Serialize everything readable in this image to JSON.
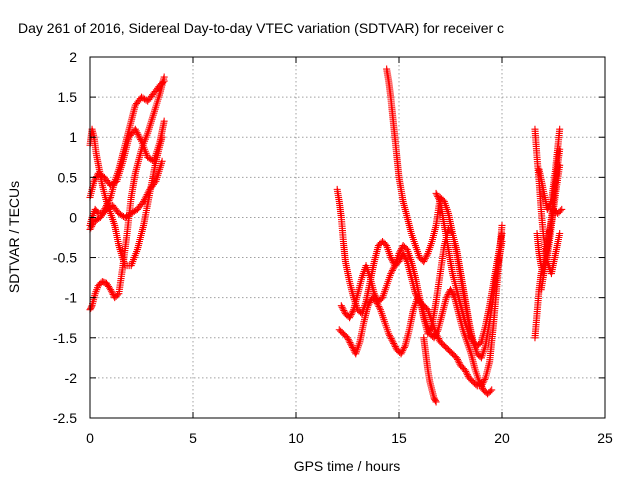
{
  "chart_data": {
    "type": "scatter",
    "title": "Day 261 of 2016, Sidereal Day-to-day VTEC variation (SDTVAR) for receiver c",
    "xlabel": "GPS time / hours",
    "ylabel": "SDTVAR / TECUs",
    "xlim": [
      0,
      25
    ],
    "ylim": [
      -2.5,
      2
    ],
    "x_ticks": [
      0,
      5,
      10,
      15,
      20,
      25
    ],
    "x_tick_labels": [
      "0",
      "5",
      "10",
      "15",
      "20",
      "25"
    ],
    "y_ticks": [
      -2.5,
      -2,
      -1.5,
      -1,
      -0.5,
      0,
      0.5,
      1,
      1.5,
      2
    ],
    "y_tick_labels": [
      "-2.5",
      "-2",
      "-1.5",
      "-1",
      "-0.5",
      "0",
      "0.5",
      "1",
      "1.5",
      "2"
    ],
    "grid": true,
    "marker": "+",
    "color": "#ff0000",
    "series": [
      {
        "traces": [
          {
            "x": [
              0.0,
              0.1,
              0.25,
              0.4,
              0.6,
              0.8,
              1.0,
              1.2,
              1.4,
              1.6,
              1.8,
              2.0,
              2.2,
              2.5,
              2.8,
              3.1,
              3.4,
              3.6
            ],
            "y": [
              -1.15,
              -1.1,
              -0.95,
              -0.85,
              -0.8,
              -0.82,
              -0.9,
              -1.0,
              -0.95,
              -0.6,
              -0.2,
              0.25,
              0.55,
              0.85,
              1.05,
              1.3,
              1.55,
              1.75
            ]
          },
          {
            "x": [
              0.0,
              0.1,
              0.25,
              0.4,
              0.6,
              0.8,
              1.0,
              1.2,
              1.4,
              1.6,
              1.8,
              2.0,
              2.2,
              2.5,
              2.8,
              3.1,
              3.4,
              3.6
            ],
            "y": [
              -0.1,
              0.0,
              0.1,
              0.05,
              0.05,
              0.15,
              0.25,
              0.45,
              0.6,
              0.8,
              1.0,
              1.2,
              1.4,
              1.5,
              1.45,
              1.55,
              1.65,
              1.7
            ]
          },
          {
            "x": [
              0.0,
              0.1,
              0.2,
              0.3,
              0.45,
              0.6,
              0.8,
              1.0,
              1.2,
              1.4,
              1.7,
              2.0,
              2.3,
              2.6,
              2.9,
              3.2,
              3.5
            ],
            "y": [
              0.9,
              1.1,
              1.0,
              0.8,
              0.6,
              0.4,
              0.2,
              0.05,
              -0.1,
              -0.35,
              -0.6,
              -0.6,
              -0.4,
              -0.1,
              0.3,
              0.7,
              1.0
            ]
          },
          {
            "x": [
              0.0,
              0.2,
              0.4,
              0.7,
              1.0,
              1.3,
              1.6,
              1.9,
              2.2,
              2.5,
              2.8,
              3.1,
              3.4,
              3.6
            ],
            "y": [
              0.25,
              0.45,
              0.55,
              0.5,
              0.4,
              0.45,
              0.7,
              1.0,
              1.1,
              0.95,
              0.75,
              0.7,
              0.95,
              1.2
            ]
          },
          {
            "x": [
              0.0,
              0.2,
              0.5,
              0.8,
              1.1,
              1.4,
              1.7,
              2.0,
              2.3,
              2.6,
              2.9,
              3.2,
              3.5
            ],
            "y": [
              -0.15,
              -0.05,
              0.0,
              0.1,
              0.15,
              0.05,
              0.0,
              0.05,
              0.1,
              0.2,
              0.35,
              0.45,
              0.7
            ]
          },
          {
            "x": [
              12.0,
              12.1,
              12.2,
              12.3,
              12.4,
              12.6,
              12.8,
              13.0,
              13.2,
              13.4,
              13.6,
              13.8,
              14.0,
              14.2,
              14.4,
              14.6,
              14.8,
              15.0,
              15.2,
              15.4,
              15.6,
              15.8,
              16.0,
              16.2,
              16.4,
              16.6,
              16.8,
              17.0,
              17.2,
              17.4,
              17.6,
              17.8,
              18.0,
              18.2,
              18.4,
              18.6,
              18.8,
              19.0,
              19.2,
              19.4,
              19.6,
              19.8,
              20.0
            ],
            "y": [
              0.35,
              0.2,
              0.0,
              -0.3,
              -0.55,
              -0.8,
              -1.0,
              -1.15,
              -1.2,
              -1.05,
              -0.8,
              -0.55,
              -0.35,
              -0.3,
              -0.35,
              -0.5,
              -0.6,
              -0.55,
              -0.45,
              -0.55,
              -0.75,
              -0.95,
              -1.05,
              -1.1,
              -1.15,
              -1.3,
              -1.45,
              -1.55,
              -1.6,
              -1.65,
              -1.7,
              -1.75,
              -1.85,
              -1.9,
              -2.0,
              -2.05,
              -2.1,
              -2.1,
              -2.0,
              -1.8,
              -1.3,
              -0.7,
              -0.1
            ]
          },
          {
            "x": [
              12.1,
              12.3,
              12.5,
              12.7,
              12.9,
              13.1,
              13.3,
              13.5,
              13.7,
              13.9,
              14.1,
              14.3,
              14.5,
              14.7,
              14.9,
              15.1,
              15.3,
              15.5,
              15.7,
              15.9,
              16.1,
              16.3,
              16.5,
              16.7,
              16.9,
              17.1,
              17.3,
              17.5,
              17.7,
              17.9,
              18.1,
              18.3,
              18.5,
              18.7,
              18.9,
              19.1,
              19.3,
              19.5
            ],
            "y": [
              -1.4,
              -1.45,
              -1.5,
              -1.6,
              -1.7,
              -1.55,
              -1.3,
              -1.1,
              -1.0,
              -1.05,
              -1.15,
              -1.3,
              -1.45,
              -1.55,
              -1.65,
              -1.7,
              -1.6,
              -1.4,
              -1.15,
              -1.0,
              -1.1,
              -1.3,
              -1.45,
              -1.5,
              -1.4,
              -1.2,
              -1.0,
              -0.9,
              -1.0,
              -1.2,
              -1.4,
              -1.55,
              -1.7,
              -1.9,
              -2.05,
              -2.15,
              -2.2,
              -2.15
            ]
          },
          {
            "x": [
              12.2,
              12.4,
              12.6,
              12.8,
              13.0,
              13.2,
              13.4,
              13.6,
              13.8,
              14.0,
              14.2,
              14.4,
              14.6,
              14.8,
              15.0,
              15.2,
              15.4,
              15.6,
              15.8,
              16.0,
              16.2,
              16.4,
              16.6,
              16.8,
              17.0,
              17.2,
              17.4,
              17.6,
              17.8,
              18.0,
              18.2,
              18.4,
              18.6,
              18.8,
              19.0,
              19.2,
              19.4,
              19.6,
              19.8,
              20.0
            ],
            "y": [
              -1.1,
              -1.2,
              -1.25,
              -1.15,
              -0.95,
              -0.75,
              -0.6,
              -0.75,
              -0.95,
              -1.05,
              -1.0,
              -0.85,
              -0.7,
              -0.6,
              -0.45,
              -0.35,
              -0.4,
              -0.55,
              -0.75,
              -1.0,
              -1.25,
              -1.45,
              -1.35,
              -1.05,
              -0.7,
              -0.35,
              -0.15,
              -0.2,
              -0.4,
              -0.7,
              -1.0,
              -1.3,
              -1.55,
              -1.7,
              -1.75,
              -1.6,
              -1.3,
              -0.95,
              -0.6,
              -0.3
            ]
          },
          {
            "x": [
              14.4,
              14.5,
              14.6,
              14.7,
              14.8,
              14.9,
              15.0,
              15.1,
              15.2,
              15.4,
              15.6,
              15.8,
              16.0,
              16.2,
              16.4,
              16.6,
              16.8,
              17.0,
              17.2,
              17.4,
              17.6,
              17.8,
              18.0,
              18.2,
              18.4,
              18.6
            ],
            "y": [
              1.85,
              1.7,
              1.5,
              1.25,
              1.0,
              0.75,
              0.5,
              0.35,
              0.2,
              0.0,
              -0.2,
              -0.35,
              -0.5,
              -0.55,
              -0.45,
              -0.3,
              -0.1,
              0.25,
              0.2,
              0.05,
              -0.2,
              -0.45,
              -0.75,
              -1.05,
              -1.35,
              -1.55
            ]
          },
          {
            "x": [
              16.2,
              16.3,
              16.4,
              16.5,
              16.6,
              16.7,
              16.8
            ],
            "y": [
              -1.5,
              -1.7,
              -1.9,
              -2.05,
              -2.15,
              -2.25,
              -2.3
            ]
          },
          {
            "x": [
              16.8,
              17.0,
              17.2,
              17.4,
              17.6,
              17.8,
              18.0,
              18.2,
              18.4,
              18.6,
              18.8,
              19.0,
              19.2,
              19.4,
              19.6,
              19.8,
              20.0
            ],
            "y": [
              0.3,
              0.2,
              -0.1,
              -0.4,
              -0.7,
              -0.9,
              -1.1,
              -1.3,
              -1.45,
              -1.55,
              -1.6,
              -1.55,
              -1.35,
              -1.1,
              -0.8,
              -0.5,
              -0.2
            ]
          },
          {
            "x": [
              21.6,
              21.7,
              21.8,
              21.9,
              22.0,
              22.2,
              22.4,
              22.6,
              22.8
            ],
            "y": [
              1.1,
              0.75,
              0.45,
              0.1,
              -0.2,
              -0.55,
              -0.7,
              -0.45,
              -0.2
            ]
          },
          {
            "x": [
              21.6,
              21.7,
              21.8,
              21.9,
              22.0,
              22.2,
              22.4,
              22.6,
              22.8
            ],
            "y": [
              -1.5,
              -1.2,
              -0.9,
              -0.7,
              -0.6,
              -0.35,
              0.0,
              0.45,
              0.85
            ]
          },
          {
            "x": [
              21.7,
              21.8,
              21.9,
              22.0,
              22.2,
              22.4,
              22.6,
              22.8
            ],
            "y": [
              -0.2,
              -0.45,
              -0.6,
              -0.7,
              -0.5,
              -0.1,
              0.3,
              0.65
            ]
          },
          {
            "x": [
              21.8,
              22.0,
              22.2,
              22.4,
              22.6,
              22.8
            ],
            "y": [
              0.6,
              0.35,
              0.1,
              0.2,
              0.6,
              1.1
            ]
          },
          {
            "x": [
              21.9,
              22.1,
              22.3,
              22.5,
              22.7,
              22.9
            ],
            "y": [
              -0.9,
              -0.6,
              -0.2,
              0.1,
              0.05,
              0.1
            ]
          }
        ]
      }
    ]
  }
}
